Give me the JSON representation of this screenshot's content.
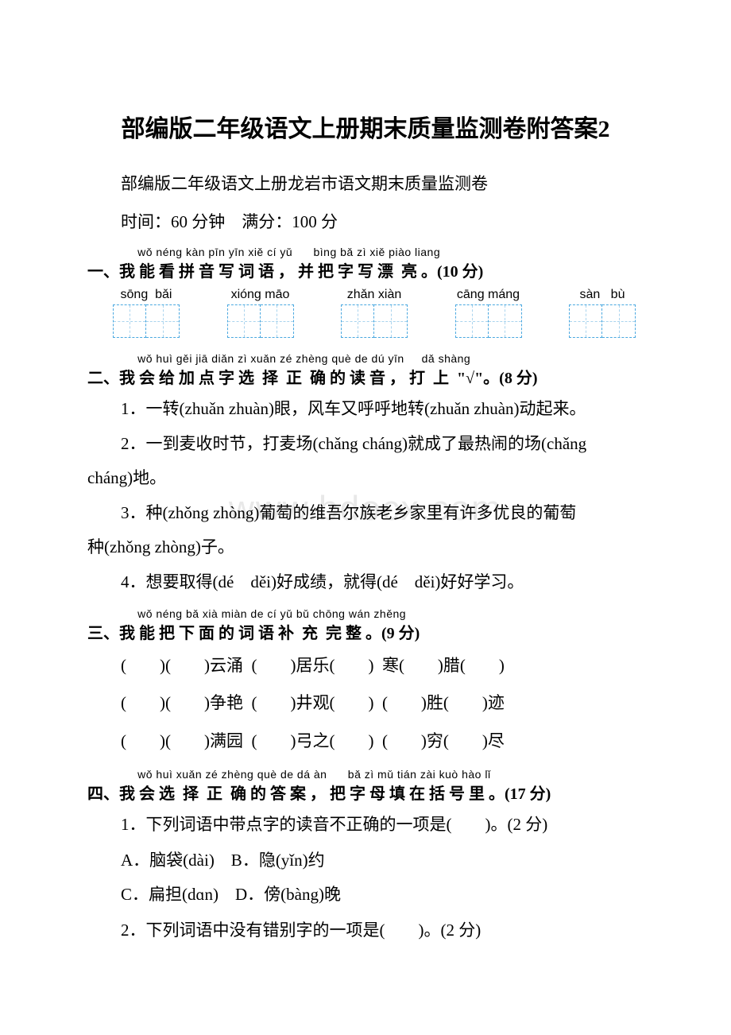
{
  "title": "部编版二年级语文上册期末质量监测卷附答案2",
  "subtitle": "部编版二年级语文上册龙岩市语文期末质量监测卷",
  "exam_info": "时间：60 分钟　满分：100 分",
  "watermark": "www.bdocx.com",
  "section1": {
    "pinyin": "        wǒ néng kàn pīn yīn xiě cí yǔ      bìng bǎ zì xiě piào liang",
    "heading": "一、我 能 看 拼 音 写 词 语 ， 并 把 字 写 漂  亮 。(10 分)",
    "boxes": [
      {
        "py": "sōng  bǎi"
      },
      {
        "py": "xióng māo"
      },
      {
        "py": "zhǎn xiàn"
      },
      {
        "py": "cāng máng"
      },
      {
        "py": "sàn   bù"
      }
    ]
  },
  "section2": {
    "pinyin": "        wǒ huì gěi jiā diǎn zì xuǎn zé zhèng què de dú yīn     dǎ shàng",
    "heading": "二、我 会 给 加 点 字 选  择  正  确 的 读 音 ， 打  上  \"√\"。(8 分)",
    "q1": "1．一转(zhuǎn zhuàn)眼，风车又呼呼地转(zhuǎn zhuàn)动起来。",
    "q2a": "2．一到麦收时节，打麦场(chǎng cháng)就成了最热闹的场(chǎng",
    "q2b": "cháng)地。",
    "q3a": "3．种(zhǒng zhòng)葡萄的维吾尔族老乡家里有许多优良的葡萄",
    "q3b": "种(zhǒng zhòng)子。",
    "q4": "4．想要取得(dé　děi)好成绩，就得(dé　děi)好好学习。"
  },
  "section3": {
    "pinyin": "        wǒ néng bǎ xià miàn de cí yǔ bǔ chōng wán zhěng",
    "heading": "三、我 能 把 下 面 的 词 语 补  充  完 整 。(9 分)",
    "line1": "(　　)(　　)云涌  (　　)居乐(　　)  寒(　　)腊(　　)",
    "line2": "(　　)(　　)争艳  (　　)井观(　　)  (　　)胜(　　)迹",
    "line3": "(　　)(　　)满园  (　　)弓之(　　)  (　　)穷(　　)尽"
  },
  "section4": {
    "pinyin": "        wǒ huì xuǎn zé zhèng què de dá àn      bǎ zì mǔ tián zài kuò hào lǐ",
    "heading": "四、我 会 选  择  正  确 的 答 案 ， 把 字 母 填 在 括 号 里 。(17 分)",
    "q1": "1．下列词语中带点字的读音不正确的一项是(　　)。(2 分)",
    "q1_opts1": "A．脑袋(dài)　B．隐(yǐn)约",
    "q1_opts2": "C．扁担(dɑn)　D．傍(bàng)晚",
    "q2": "2．下列词语中没有错别字的一项是(　　)。(2 分)"
  }
}
